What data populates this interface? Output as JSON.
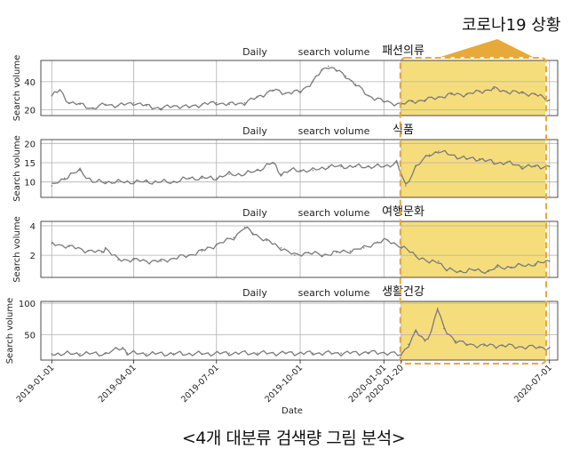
{
  "colors": {
    "line": "#7a7a7a",
    "highlight_fill": "#f6dd7c",
    "highlight_border": "#e8a93b",
    "grid": "#b0b0b0",
    "axis": "#222222"
  },
  "banner": "코로나19 상황",
  "caption": "<4개 대분류 검색량 그림 분석>",
  "chart_data": [
    {
      "type": "line",
      "title_left": "Daily",
      "title_right": "search volume",
      "category": "패션의류",
      "ylabel": "Search volume",
      "ylim": [
        16,
        55
      ],
      "yticks": [
        20,
        40
      ],
      "highlight_start": "2020-01-20",
      "series": [
        {
          "values": [
            [
              "2019-01-01",
              30
            ],
            [
              "2019-01-10",
              34
            ],
            [
              "2019-01-20",
              25
            ],
            [
              "2019-02-01",
              24
            ],
            [
              "2019-02-15",
              21
            ],
            [
              "2019-03-01",
              24
            ],
            [
              "2019-03-15",
              23
            ],
            [
              "2019-04-01",
              25
            ],
            [
              "2019-04-15",
              23
            ],
            [
              "2019-05-01",
              21
            ],
            [
              "2019-05-15",
              23
            ],
            [
              "2019-06-01",
              22
            ],
            [
              "2019-06-15",
              24
            ],
            [
              "2019-07-01",
              25
            ],
            [
              "2019-07-15",
              24
            ],
            [
              "2019-08-01",
              25
            ],
            [
              "2019-08-15",
              29
            ],
            [
              "2019-09-01",
              34
            ],
            [
              "2019-09-15",
              32
            ],
            [
              "2019-10-01",
              33
            ],
            [
              "2019-10-15",
              40
            ],
            [
              "2019-10-25",
              48
            ],
            [
              "2019-11-01",
              51
            ],
            [
              "2019-11-10",
              48
            ],
            [
              "2019-11-20",
              44
            ],
            [
              "2019-12-01",
              38
            ],
            [
              "2019-12-15",
              30
            ],
            [
              "2020-01-01",
              26
            ],
            [
              "2020-01-20",
              24
            ],
            [
              "2020-02-01",
              26
            ],
            [
              "2020-02-15",
              27
            ],
            [
              "2020-03-01",
              29
            ],
            [
              "2020-03-15",
              31
            ],
            [
              "2020-04-01",
              31
            ],
            [
              "2020-04-15",
              33
            ],
            [
              "2020-05-01",
              35
            ],
            [
              "2020-05-15",
              33
            ],
            [
              "2020-06-01",
              32
            ],
            [
              "2020-06-15",
              31
            ],
            [
              "2020-07-01",
              27
            ]
          ]
        }
      ]
    },
    {
      "type": "line",
      "title_left": "Daily",
      "title_right": "search volume",
      "category": "식품",
      "ylabel": "Search volume",
      "ylim": [
        6,
        21
      ],
      "yticks": [
        10,
        15,
        20
      ],
      "highlight_start": "2020-01-20",
      "series": [
        {
          "values": [
            [
              "2019-01-01",
              9
            ],
            [
              "2019-01-15",
              11
            ],
            [
              "2019-02-01",
              13
            ],
            [
              "2019-02-15",
              10
            ],
            [
              "2019-03-01",
              10
            ],
            [
              "2019-03-15",
              10
            ],
            [
              "2019-04-01",
              10
            ],
            [
              "2019-04-15",
              10
            ],
            [
              "2019-05-01",
              10
            ],
            [
              "2019-05-15",
              10
            ],
            [
              "2019-06-01",
              11
            ],
            [
              "2019-06-15",
              11
            ],
            [
              "2019-07-01",
              11
            ],
            [
              "2019-07-15",
              12
            ],
            [
              "2019-08-01",
              12
            ],
            [
              "2019-08-15",
              13
            ],
            [
              "2019-09-01",
              15
            ],
            [
              "2019-09-10",
              12
            ],
            [
              "2019-09-20",
              13
            ],
            [
              "2019-10-01",
              13
            ],
            [
              "2019-10-15",
              13
            ],
            [
              "2019-11-01",
              14
            ],
            [
              "2019-11-15",
              14
            ],
            [
              "2019-12-01",
              14
            ],
            [
              "2019-12-15",
              14
            ],
            [
              "2020-01-01",
              14
            ],
            [
              "2020-01-15",
              15
            ],
            [
              "2020-01-25",
              9
            ],
            [
              "2020-02-05",
              14
            ],
            [
              "2020-02-20",
              17
            ],
            [
              "2020-03-01",
              18
            ],
            [
              "2020-03-15",
              17
            ],
            [
              "2020-04-01",
              16
            ],
            [
              "2020-04-15",
              16
            ],
            [
              "2020-05-01",
              15
            ],
            [
              "2020-05-15",
              15
            ],
            [
              "2020-06-01",
              14
            ],
            [
              "2020-06-15",
              14
            ],
            [
              "2020-07-01",
              14
            ]
          ]
        }
      ]
    },
    {
      "type": "line",
      "title_left": "Daily",
      "title_right": "search volume",
      "category": "여행문화",
      "ylabel": "Search volume",
      "ylim": [
        0.5,
        4.3
      ],
      "yticks": [
        2,
        4
      ],
      "highlight_start": "2020-01-20",
      "series": [
        {
          "values": [
            [
              "2019-01-01",
              2.8
            ],
            [
              "2019-01-20",
              2.6
            ],
            [
              "2019-02-10",
              2.3
            ],
            [
              "2019-02-25",
              2.2
            ],
            [
              "2019-03-01",
              2.5
            ],
            [
              "2019-03-15",
              1.7
            ],
            [
              "2019-04-01",
              1.7
            ],
            [
              "2019-04-15",
              1.6
            ],
            [
              "2019-05-01",
              1.6
            ],
            [
              "2019-05-15",
              1.8
            ],
            [
              "2019-06-01",
              2.0
            ],
            [
              "2019-06-15",
              2.3
            ],
            [
              "2019-07-01",
              2.7
            ],
            [
              "2019-07-20",
              3.2
            ],
            [
              "2019-08-01",
              3.9
            ],
            [
              "2019-08-10",
              3.5
            ],
            [
              "2019-08-25",
              3.0
            ],
            [
              "2019-09-10",
              2.5
            ],
            [
              "2019-09-25",
              2.0
            ],
            [
              "2019-10-10",
              2.2
            ],
            [
              "2019-10-25",
              2.0
            ],
            [
              "2019-11-10",
              2.2
            ],
            [
              "2019-11-25",
              2.3
            ],
            [
              "2019-12-10",
              2.5
            ],
            [
              "2019-12-25",
              2.9
            ],
            [
              "2020-01-05",
              3.0
            ],
            [
              "2020-01-20",
              2.6
            ],
            [
              "2020-02-05",
              2.0
            ],
            [
              "2020-02-20",
              1.5
            ],
            [
              "2020-03-01",
              1.6
            ],
            [
              "2020-03-10",
              1.0
            ],
            [
              "2020-03-25",
              0.9
            ],
            [
              "2020-04-10",
              1.0
            ],
            [
              "2020-04-25",
              0.9
            ],
            [
              "2020-05-05",
              1.2
            ],
            [
              "2020-05-20",
              1.2
            ],
            [
              "2020-06-01",
              1.3
            ],
            [
              "2020-06-15",
              1.4
            ],
            [
              "2020-07-01",
              1.6
            ]
          ]
        }
      ]
    },
    {
      "type": "line",
      "title_left": "Daily",
      "title_right": "search volume",
      "category": "생활건강",
      "ylabel": "Search volume",
      "ylim": [
        10,
        103
      ],
      "yticks": [
        50,
        100
      ],
      "highlight_start": "2020-01-20",
      "series": [
        {
          "values": [
            [
              "2019-01-01",
              20
            ],
            [
              "2019-02-01",
              20
            ],
            [
              "2019-03-01",
              20
            ],
            [
              "2019-03-20",
              30
            ],
            [
              "2019-03-25",
              21
            ],
            [
              "2019-04-15",
              20
            ],
            [
              "2019-05-15",
              20
            ],
            [
              "2019-06-15",
              20
            ],
            [
              "2019-07-15",
              21
            ],
            [
              "2019-08-15",
              21
            ],
            [
              "2019-09-15",
              21
            ],
            [
              "2019-10-15",
              21
            ],
            [
              "2019-11-15",
              21
            ],
            [
              "2019-12-15",
              22
            ],
            [
              "2020-01-01",
              22
            ],
            [
              "2020-01-20",
              18
            ],
            [
              "2020-01-28",
              35
            ],
            [
              "2020-02-05",
              55
            ],
            [
              "2020-02-15",
              40
            ],
            [
              "2020-02-22",
              56
            ],
            [
              "2020-02-29",
              92
            ],
            [
              "2020-03-07",
              60
            ],
            [
              "2020-03-20",
              40
            ],
            [
              "2020-04-01",
              35
            ],
            [
              "2020-04-20",
              33
            ],
            [
              "2020-05-10",
              33
            ],
            [
              "2020-06-01",
              31
            ],
            [
              "2020-06-20",
              30
            ],
            [
              "2020-07-01",
              30
            ]
          ]
        }
      ]
    }
  ],
  "x_axis": {
    "label": "Date",
    "ticks": [
      "2019-01-01",
      "2019-04-01",
      "2019-07-01",
      "2019-10-01",
      "2020-01-01",
      "2020-01-20",
      "2020-07-01"
    ],
    "range": [
      "2018-12-20",
      "2020-07-10"
    ]
  }
}
